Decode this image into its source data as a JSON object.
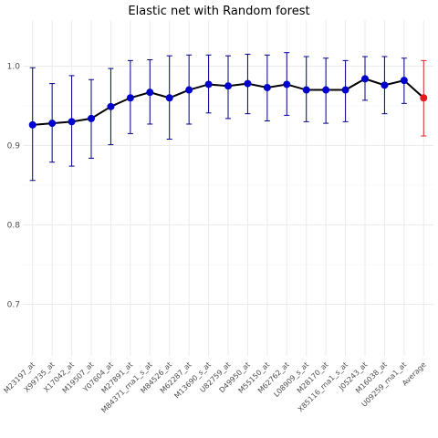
{
  "chart_data": {
    "type": "line",
    "title": "Elastic net with Random forest",
    "xlabel": "",
    "ylabel": "",
    "ylim": [
      0.635,
      1.058
    ],
    "yticks": [
      0.7,
      0.8,
      0.9,
      1.0
    ],
    "ytick_labels": [
      "0.7",
      "0.8",
      "0.9",
      "1.0"
    ],
    "grid": true,
    "categories": [
      "M23197_at",
      "X99735_at",
      "X17042_at",
      "M19507_at",
      "Y07604_at",
      "M27891_at",
      "M84371_rna1_s_at",
      "M84526_at",
      "M62287_at",
      "M13690_s_at",
      "U82759_at",
      "D49950_at",
      "M55150_at",
      "M62762_at",
      "L08909_s_at",
      "M28170_at",
      "X85116_rna1_s_at",
      "J05243_at",
      "M16038_at",
      "U09259_rna1_at",
      "Average"
    ],
    "series": [
      {
        "values": [
          0.926,
          0.928,
          0.93,
          0.934,
          0.949,
          0.96,
          0.967,
          0.96,
          0.97,
          0.977,
          0.975,
          0.978,
          0.973,
          0.977,
          0.97,
          0.97,
          0.97,
          0.984,
          0.976,
          0.982,
          0.96
        ],
        "upper": [
          0.998,
          0.978,
          0.988,
          0.983,
          0.997,
          1.007,
          1.008,
          1.013,
          1.014,
          1.014,
          1.013,
          1.015,
          1.014,
          1.017,
          1.012,
          1.01,
          1.007,
          1.012,
          1.012,
          1.01,
          1.007
        ],
        "lower": [
          0.856,
          0.879,
          0.874,
          0.884,
          0.901,
          0.915,
          0.927,
          0.908,
          0.927,
          0.941,
          0.934,
          0.94,
          0.931,
          0.938,
          0.93,
          0.928,
          0.93,
          0.957,
          0.94,
          0.953,
          0.912
        ]
      }
    ],
    "colors": {
      "line": "#000000",
      "point": "#0000cd",
      "errorbar": "#00008b",
      "average_point": "#e31a1c",
      "average_errorbar": "#d62728",
      "grid_major": "#ebebeb",
      "grid_minor": "#f5f5f5"
    }
  }
}
